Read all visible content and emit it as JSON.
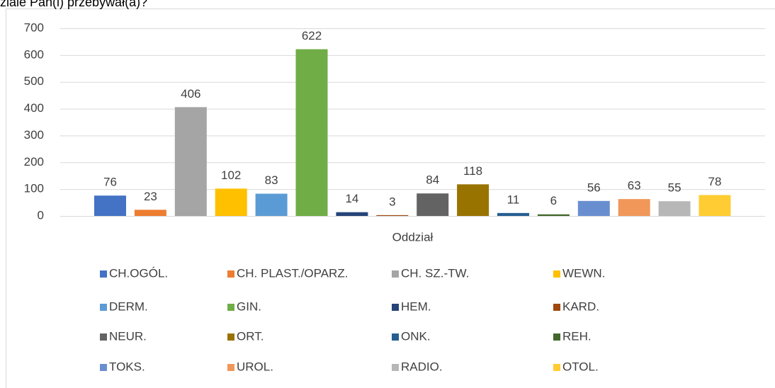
{
  "chart_data": {
    "type": "bar",
    "title": "ziale Pan(i) przebywał(a)?",
    "categories": [
      "Oddział"
    ],
    "ylim": [
      0,
      700
    ],
    "yticks": [
      0,
      100,
      200,
      300,
      400,
      500,
      600,
      700
    ],
    "grid": true,
    "legend": "bottom",
    "series": [
      {
        "name": "CH.OGÓL.",
        "color": "#4472c4",
        "values": [
          76
        ]
      },
      {
        "name": "CH. PLAST./OPARZ.",
        "color": "#ed7d31",
        "values": [
          23
        ]
      },
      {
        "name": "CH. SZ.-TW.",
        "color": "#a5a5a5",
        "values": [
          406
        ]
      },
      {
        "name": "WEWN.",
        "color": "#ffc000",
        "values": [
          102
        ]
      },
      {
        "name": "DERM.",
        "color": "#5b9bd5",
        "values": [
          83
        ]
      },
      {
        "name": "GIN.",
        "color": "#70ad47",
        "values": [
          622
        ]
      },
      {
        "name": "HEM.",
        "color": "#264478",
        "values": [
          14
        ]
      },
      {
        "name": "KARD.",
        "color": "#9e480e",
        "values": [
          3
        ]
      },
      {
        "name": "NEUR.",
        "color": "#636363",
        "values": [
          84
        ]
      },
      {
        "name": "ORT.",
        "color": "#997300",
        "values": [
          118
        ]
      },
      {
        "name": "ONK.",
        "color": "#255e91",
        "values": [
          11
        ]
      },
      {
        "name": "REH.",
        "color": "#43682b",
        "values": [
          6
        ]
      },
      {
        "name": "TOKS.",
        "color": "#698ed0",
        "values": [
          56
        ]
      },
      {
        "name": "UROL.",
        "color": "#f1975a",
        "values": [
          63
        ]
      },
      {
        "name": "RADIO.",
        "color": "#b7b7b7",
        "values": [
          55
        ]
      },
      {
        "name": "OTOL.",
        "color": "#ffcd33",
        "values": [
          78
        ]
      }
    ]
  }
}
